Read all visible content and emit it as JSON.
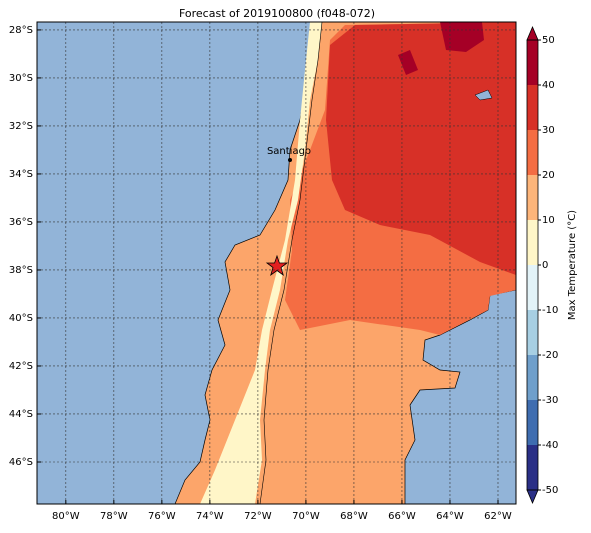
{
  "header": {
    "title": "Forecast of 2019100800 (f048-072)"
  },
  "map": {
    "xlim": [
      -81.2,
      -61.25
    ],
    "ylim": [
      -47.75,
      -27.67
    ],
    "xticks": [
      {
        "value": -80,
        "label": "80°W"
      },
      {
        "value": -78,
        "label": "78°W"
      },
      {
        "value": -76,
        "label": "76°W"
      },
      {
        "value": -74,
        "label": "74°W"
      },
      {
        "value": -72,
        "label": "72°W"
      },
      {
        "value": -70,
        "label": "70°W"
      },
      {
        "value": -68,
        "label": "68°W"
      },
      {
        "value": -66,
        "label": "66°W"
      },
      {
        "value": -64,
        "label": "64°W"
      },
      {
        "value": -62,
        "label": "62°W"
      }
    ],
    "yticks": [
      {
        "value": -28,
        "label": "28°S"
      },
      {
        "value": -30,
        "label": "30°S"
      },
      {
        "value": -32,
        "label": "32°S"
      },
      {
        "value": -34,
        "label": "34°S"
      },
      {
        "value": -36,
        "label": "36°S"
      },
      {
        "value": -38,
        "label": "38°S"
      },
      {
        "value": -40,
        "label": "40°S"
      },
      {
        "value": -42,
        "label": "42°S"
      },
      {
        "value": -44,
        "label": "44°S"
      },
      {
        "value": -46,
        "label": "46°S"
      }
    ],
    "grid": true,
    "city": "Santiago"
  },
  "colorbar": {
    "label": "Max Temperature (°C)",
    "ticks": [
      -50,
      -40,
      -30,
      -20,
      -10,
      0,
      10,
      20,
      30,
      40,
      50
    ],
    "colors": [
      "#2a2f86",
      "#3f6db0",
      "#6f9fcb",
      "#a7cfe3",
      "#e3f3f8",
      "#fff6c8",
      "#fdb57a",
      "#f46d43",
      "#d73027",
      "#a50026"
    ]
  }
}
